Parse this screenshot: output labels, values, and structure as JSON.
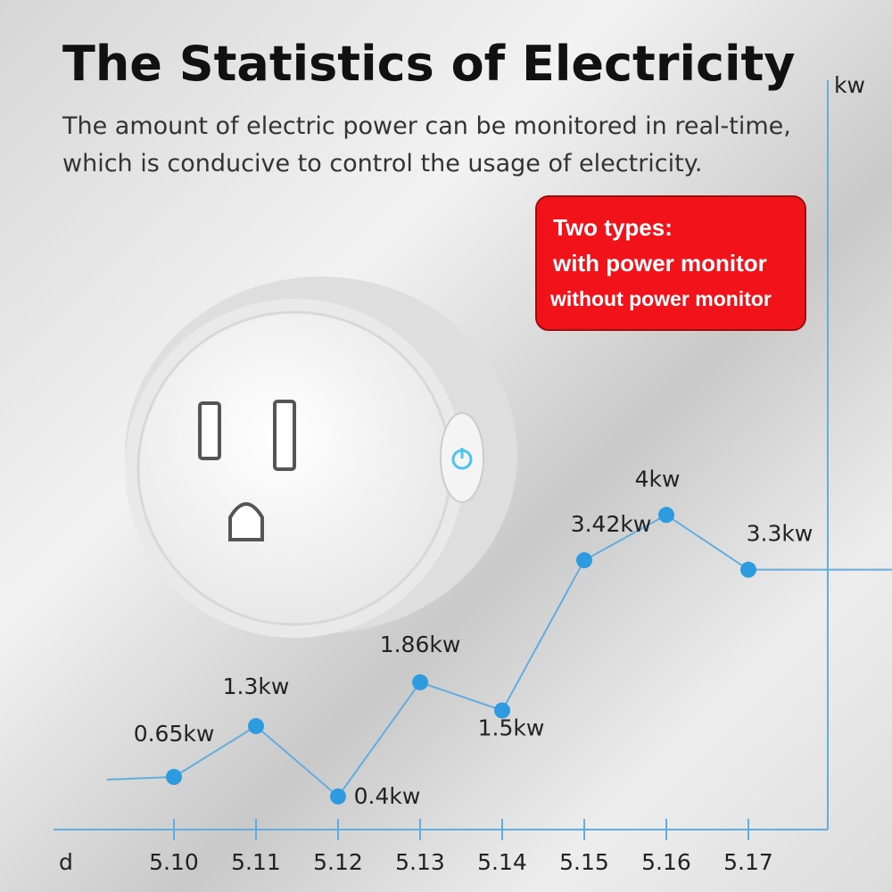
{
  "chart_data": {
    "type": "line",
    "title": "The Statistics of Electricity",
    "subtitle": [
      "The amount of electric power can be monitored in real-time,",
      "which is conducive to control the usage of electricity."
    ],
    "annotations": [
      "Two types:",
      "with power monitor",
      "without power monitor"
    ],
    "y_label": "kw",
    "x_label": "d",
    "categories": [
      "5.10",
      "5.11",
      "5.12",
      "5.13",
      "5.14",
      "5.15",
      "5.16",
      "5.17"
    ],
    "values": [
      0.65,
      1.3,
      0.4,
      1.86,
      1.5,
      3.42,
      4,
      3.3
    ],
    "value_labels": [
      "0.65kw",
      "1.3kw",
      "0.4kw",
      "1.86kw",
      "1.5kw",
      "3.42kw",
      "4kw",
      "3.3kw"
    ],
    "color": "#62ade0",
    "ylim": [
      0,
      9.5
    ]
  }
}
